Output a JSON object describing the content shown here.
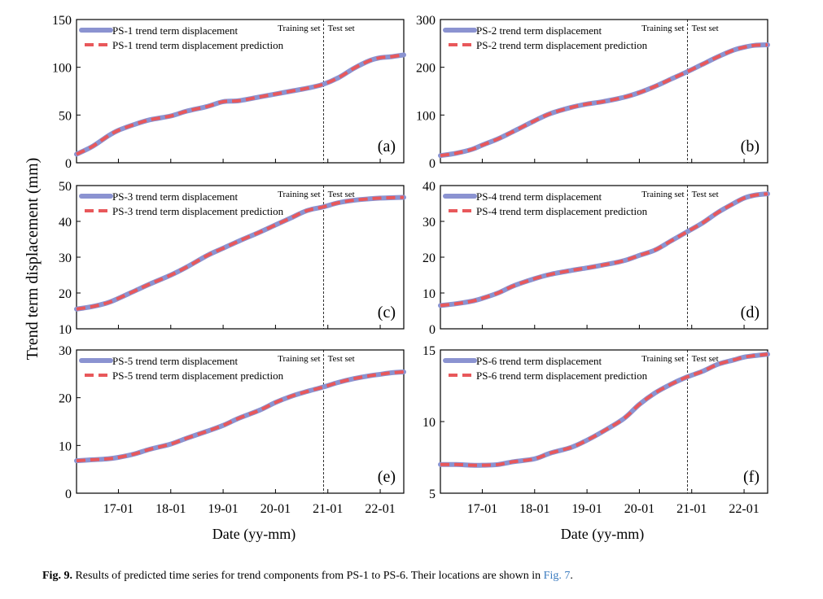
{
  "figure": {
    "y_axis_label": "Trend term displacement (mm)",
    "x_axis_label": "Date (yy-mm)",
    "x_tick_labels": [
      "17-01",
      "18-01",
      "19-01",
      "20-01",
      "21-01",
      "22-01"
    ],
    "split_labels": {
      "train": "Training set",
      "test": "Test set"
    }
  },
  "colors": {
    "actual": "#8b93d1",
    "predicted": "#e8585b"
  },
  "caption": {
    "lead": "Fig. 9.",
    "text": "Results of predicted time series for trend components from PS-1 to PS-6. Their locations are shown in",
    "link": "Fig. 7",
    "end": "."
  },
  "chart_data": [
    {
      "type": "line",
      "panel": "(a)",
      "ylim": [
        0,
        150
      ],
      "yticks": [
        0,
        50,
        100,
        150
      ],
      "xlim": [
        16.2,
        22.45
      ],
      "xticks": [
        17,
        18,
        19,
        20,
        21,
        22
      ],
      "split_x": 20.92,
      "series": [
        {
          "name": "PS-1 trend term displacement",
          "x": [
            16.2,
            16.5,
            16.8,
            17.0,
            17.3,
            17.6,
            18.0,
            18.3,
            18.7,
            19.0,
            19.3,
            19.7,
            20.0,
            20.3,
            20.6,
            20.9,
            21.2,
            21.5,
            21.8,
            22.0,
            22.2,
            22.45
          ],
          "y": [
            9,
            17,
            28,
            34,
            40,
            45,
            49,
            54,
            59,
            64,
            65,
            69,
            72,
            75,
            78,
            82,
            89,
            99,
            107,
            110,
            111,
            113
          ]
        },
        {
          "name": "PS-1 trend term displacement prediction",
          "x": [
            16.2,
            16.5,
            16.8,
            17.0,
            17.3,
            17.6,
            18.0,
            18.3,
            18.7,
            19.0,
            19.3,
            19.7,
            20.0,
            20.3,
            20.6,
            20.9,
            21.2,
            21.5,
            21.8,
            22.0,
            22.2,
            22.45
          ],
          "y": [
            9,
            17,
            28,
            34,
            40,
            45,
            49,
            54,
            59,
            64,
            65,
            69,
            72,
            75,
            78,
            82,
            89,
            99,
            107,
            110,
            111,
            113
          ]
        }
      ]
    },
    {
      "type": "line",
      "panel": "(b)",
      "ylim": [
        0,
        300
      ],
      "yticks": [
        0,
        100,
        200,
        300
      ],
      "xlim": [
        16.2,
        22.45
      ],
      "xticks": [
        17,
        18,
        19,
        20,
        21,
        22
      ],
      "split_x": 20.92,
      "series": [
        {
          "name": "PS-2 trend term displacement",
          "x": [
            16.2,
            16.5,
            16.8,
            17.0,
            17.3,
            17.6,
            18.0,
            18.3,
            18.7,
            19.0,
            19.3,
            19.7,
            20.0,
            20.3,
            20.6,
            20.9,
            21.2,
            21.5,
            21.8,
            22.0,
            22.2,
            22.45
          ],
          "y": [
            15,
            20,
            28,
            37,
            50,
            66,
            88,
            103,
            116,
            123,
            128,
            137,
            147,
            160,
            175,
            190,
            206,
            222,
            236,
            242,
            246,
            247
          ]
        },
        {
          "name": "PS-2 trend term displacement prediction",
          "x": [
            16.2,
            16.5,
            16.8,
            17.0,
            17.3,
            17.6,
            18.0,
            18.3,
            18.7,
            19.0,
            19.3,
            19.7,
            20.0,
            20.3,
            20.6,
            20.9,
            21.2,
            21.5,
            21.8,
            22.0,
            22.2,
            22.45
          ],
          "y": [
            15,
            20,
            28,
            37,
            50,
            66,
            88,
            103,
            116,
            123,
            128,
            137,
            147,
            160,
            175,
            190,
            206,
            222,
            236,
            242,
            246,
            247
          ]
        }
      ]
    },
    {
      "type": "line",
      "panel": "(c)",
      "ylim": [
        10,
        50
      ],
      "yticks": [
        10,
        20,
        30,
        40,
        50
      ],
      "xlim": [
        16.2,
        22.45
      ],
      "xticks": [
        17,
        18,
        19,
        20,
        21,
        22
      ],
      "split_x": 20.92,
      "series": [
        {
          "name": "PS-3 trend term displacement",
          "x": [
            16.2,
            16.5,
            16.8,
            17.0,
            17.3,
            17.6,
            18.0,
            18.3,
            18.7,
            19.0,
            19.3,
            19.7,
            20.0,
            20.3,
            20.6,
            20.9,
            21.2,
            21.5,
            21.8,
            22.0,
            22.2,
            22.45
          ],
          "y": [
            15.5,
            16.2,
            17.3,
            18.5,
            20.5,
            22.5,
            25,
            27.2,
            30.5,
            32.5,
            34.5,
            37,
            39,
            41,
            43,
            44,
            45.2,
            45.9,
            46.3,
            46.5,
            46.6,
            46.7
          ]
        },
        {
          "name": "PS-3 trend term displacement prediction",
          "x": [
            16.2,
            16.5,
            16.8,
            17.0,
            17.3,
            17.6,
            18.0,
            18.3,
            18.7,
            19.0,
            19.3,
            19.7,
            20.0,
            20.3,
            20.6,
            20.9,
            21.2,
            21.5,
            21.8,
            22.0,
            22.2,
            22.45
          ],
          "y": [
            15.5,
            16.2,
            17.3,
            18.5,
            20.5,
            22.5,
            25,
            27.2,
            30.5,
            32.5,
            34.5,
            37,
            39,
            41,
            43,
            44,
            45.2,
            45.9,
            46.3,
            46.5,
            46.6,
            46.7
          ]
        }
      ]
    },
    {
      "type": "line",
      "panel": "(d)",
      "ylim": [
        0,
        40
      ],
      "yticks": [
        0,
        10,
        20,
        30,
        40
      ],
      "xlim": [
        16.2,
        22.45
      ],
      "xticks": [
        17,
        18,
        19,
        20,
        21,
        22
      ],
      "split_x": 20.92,
      "series": [
        {
          "name": "PS-4 trend term displacement",
          "x": [
            16.2,
            16.5,
            16.8,
            17.0,
            17.3,
            17.6,
            18.0,
            18.3,
            18.7,
            19.0,
            19.3,
            19.7,
            20.0,
            20.3,
            20.6,
            20.9,
            21.2,
            21.5,
            21.8,
            22.0,
            22.2,
            22.45
          ],
          "y": [
            6.5,
            7,
            7.7,
            8.5,
            10,
            12,
            14,
            15.2,
            16.3,
            17,
            17.8,
            19,
            20.5,
            22,
            24.5,
            27,
            29.5,
            32.5,
            35,
            36.5,
            37.3,
            37.7
          ]
        },
        {
          "name": "PS-4 trend term displacement prediction",
          "x": [
            16.2,
            16.5,
            16.8,
            17.0,
            17.3,
            17.6,
            18.0,
            18.3,
            18.7,
            19.0,
            19.3,
            19.7,
            20.0,
            20.3,
            20.6,
            20.9,
            21.2,
            21.5,
            21.8,
            22.0,
            22.2,
            22.45
          ],
          "y": [
            6.5,
            7,
            7.7,
            8.5,
            10,
            12,
            14,
            15.2,
            16.3,
            17,
            17.8,
            19,
            20.5,
            22,
            24.5,
            27,
            29.5,
            32.5,
            35,
            36.5,
            37.3,
            37.7
          ]
        }
      ]
    },
    {
      "type": "line",
      "panel": "(e)",
      "ylim": [
        0,
        30
      ],
      "yticks": [
        0,
        10,
        20,
        30
      ],
      "xlim": [
        16.2,
        22.45
      ],
      "xticks": [
        17,
        18,
        19,
        20,
        21,
        22
      ],
      "split_x": 20.92,
      "series": [
        {
          "name": "PS-5 trend term displacement",
          "x": [
            16.2,
            16.5,
            16.8,
            17.0,
            17.3,
            17.6,
            18.0,
            18.3,
            18.7,
            19.0,
            19.3,
            19.7,
            20.0,
            20.3,
            20.6,
            20.9,
            21.2,
            21.5,
            21.8,
            22.0,
            22.2,
            22.45
          ],
          "y": [
            6.8,
            7,
            7.2,
            7.5,
            8.2,
            9.2,
            10.3,
            11.5,
            13,
            14.2,
            15.7,
            17.4,
            19,
            20.3,
            21.3,
            22.2,
            23.2,
            24,
            24.6,
            24.9,
            25.2,
            25.4
          ]
        },
        {
          "name": "PS-5 trend term displacement prediction",
          "x": [
            16.2,
            16.5,
            16.8,
            17.0,
            17.3,
            17.6,
            18.0,
            18.3,
            18.7,
            19.0,
            19.3,
            19.7,
            20.0,
            20.3,
            20.6,
            20.9,
            21.2,
            21.5,
            21.8,
            22.0,
            22.2,
            22.45
          ],
          "y": [
            6.8,
            7,
            7.2,
            7.5,
            8.2,
            9.2,
            10.3,
            11.5,
            13,
            14.2,
            15.7,
            17.4,
            19,
            20.3,
            21.3,
            22.2,
            23.2,
            24,
            24.6,
            24.9,
            25.2,
            25.4
          ]
        }
      ]
    },
    {
      "type": "line",
      "panel": "(f)",
      "ylim": [
        5,
        15
      ],
      "yticks": [
        5,
        10,
        15
      ],
      "xlim": [
        16.2,
        22.45
      ],
      "xticks": [
        17,
        18,
        19,
        20,
        21,
        22
      ],
      "split_x": 20.92,
      "series": [
        {
          "name": "PS-6 trend term displacement",
          "x": [
            16.2,
            16.5,
            16.8,
            17.0,
            17.3,
            17.6,
            18.0,
            18.3,
            18.7,
            19.0,
            19.3,
            19.7,
            20.0,
            20.3,
            20.6,
            20.9,
            21.2,
            21.5,
            21.8,
            22.0,
            22.2,
            22.45
          ],
          "y": [
            7,
            7,
            6.95,
            6.95,
            7,
            7.2,
            7.4,
            7.8,
            8.2,
            8.7,
            9.3,
            10.2,
            11.2,
            12,
            12.6,
            13.1,
            13.5,
            14,
            14.3,
            14.5,
            14.6,
            14.7
          ]
        },
        {
          "name": "PS-6 trend term displacement prediction",
          "x": [
            16.2,
            16.5,
            16.8,
            17.0,
            17.3,
            17.6,
            18.0,
            18.3,
            18.7,
            19.0,
            19.3,
            19.7,
            20.0,
            20.3,
            20.6,
            20.9,
            21.2,
            21.5,
            21.8,
            22.0,
            22.2,
            22.45
          ],
          "y": [
            7,
            7,
            6.95,
            6.95,
            7,
            7.2,
            7.4,
            7.8,
            8.2,
            8.7,
            9.3,
            10.2,
            11.2,
            12,
            12.6,
            13.1,
            13.5,
            14,
            14.3,
            14.5,
            14.6,
            14.7
          ]
        }
      ]
    }
  ]
}
